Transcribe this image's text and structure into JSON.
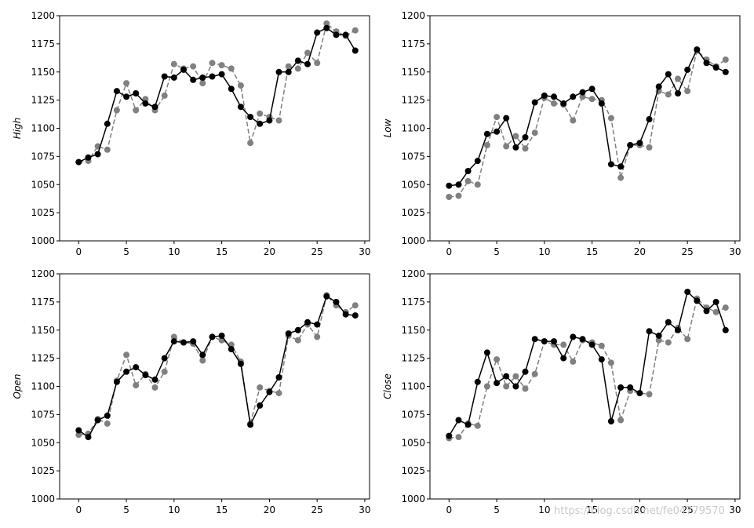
{
  "watermark": "https://blog.csdn.net/fe04779570",
  "chart_data": [
    {
      "type": "line",
      "ylabel": "High",
      "xlim": [
        -2,
        30.5
      ],
      "ylim": [
        1000,
        1200
      ],
      "xticks": [
        0,
        5,
        10,
        15,
        20,
        25,
        30
      ],
      "yticks": [
        1000,
        1025,
        1050,
        1075,
        1100,
        1125,
        1150,
        1175,
        1200
      ],
      "x": [
        0,
        1,
        2,
        3,
        4,
        5,
        6,
        7,
        8,
        9,
        10,
        11,
        12,
        13,
        14,
        15,
        16,
        17,
        18,
        19,
        20,
        21,
        22,
        23,
        24,
        25,
        26,
        27,
        28,
        29
      ],
      "series": [
        {
          "color": "#000000",
          "linestyle": "solid",
          "values": [
            1070,
            1074,
            1077,
            1104,
            1133,
            1128,
            1131,
            1122,
            1119,
            1146,
            1145,
            1152,
            1143,
            1145,
            1146,
            1148,
            1135,
            1119,
            1110,
            1104,
            1107,
            1150,
            1150,
            1160,
            1157,
            1185,
            1189,
            1183,
            1183,
            1169
          ]
        },
        {
          "color": "#808080",
          "linestyle": "dashed",
          "values": [
            1070,
            1071,
            1084,
            1081,
            1116,
            1140,
            1116,
            1126,
            1116,
            1129,
            1157,
            1153,
            1155,
            1140,
            1158,
            1156,
            1153,
            1138,
            1087,
            1113,
            1110,
            1107,
            1155,
            1153,
            1167,
            1158,
            1193,
            1186,
            1182,
            1187
          ]
        }
      ]
    },
    {
      "type": "line",
      "ylabel": "Low",
      "xlim": [
        -2,
        30.5
      ],
      "ylim": [
        1000,
        1200
      ],
      "xticks": [
        0,
        5,
        10,
        15,
        20,
        25,
        30
      ],
      "yticks": [
        1000,
        1025,
        1050,
        1075,
        1100,
        1125,
        1150,
        1175,
        1200
      ],
      "x": [
        0,
        1,
        2,
        3,
        4,
        5,
        6,
        7,
        8,
        9,
        10,
        11,
        12,
        13,
        14,
        15,
        16,
        17,
        18,
        19,
        20,
        21,
        22,
        23,
        24,
        25,
        26,
        27,
        28,
        29
      ],
      "series": [
        {
          "color": "#000000",
          "linestyle": "solid",
          "values": [
            1049,
            1050,
            1062,
            1071,
            1095,
            1097,
            1109,
            1083,
            1092,
            1123,
            1129,
            1128,
            1122,
            1128,
            1132,
            1135,
            1122,
            1068,
            1066,
            1085,
            1087,
            1108,
            1137,
            1148,
            1131,
            1152,
            1170,
            1158,
            1154,
            1150
          ]
        },
        {
          "color": "#808080",
          "linestyle": "dashed",
          "values": [
            1039,
            1040,
            1053,
            1050,
            1085,
            1110,
            1084,
            1093,
            1082,
            1096,
            1127,
            1122,
            1121,
            1107,
            1128,
            1126,
            1125,
            1109,
            1056,
            1085,
            1085,
            1083,
            1133,
            1130,
            1144,
            1133,
            1169,
            1161,
            1155,
            1161
          ]
        }
      ]
    },
    {
      "type": "line",
      "ylabel": "Open",
      "xlim": [
        -2,
        30.5
      ],
      "ylim": [
        1000,
        1200
      ],
      "xticks": [
        0,
        5,
        10,
        15,
        20,
        25,
        30
      ],
      "yticks": [
        1000,
        1025,
        1050,
        1075,
        1100,
        1125,
        1150,
        1175,
        1200
      ],
      "x": [
        0,
        1,
        2,
        3,
        4,
        5,
        6,
        7,
        8,
        9,
        10,
        11,
        12,
        13,
        14,
        15,
        16,
        17,
        18,
        19,
        20,
        21,
        22,
        23,
        24,
        25,
        26,
        27,
        28,
        29
      ],
      "series": [
        {
          "color": "#000000",
          "linestyle": "solid",
          "values": [
            1061,
            1055,
            1070,
            1074,
            1104,
            1113,
            1117,
            1110,
            1106,
            1125,
            1140,
            1139,
            1140,
            1128,
            1144,
            1145,
            1133,
            1120,
            1066,
            1083,
            1095,
            1108,
            1147,
            1150,
            1157,
            1155,
            1180,
            1175,
            1164,
            1163
          ]
        },
        {
          "color": "#808080",
          "linestyle": "dashed",
          "values": [
            1057,
            1058,
            1071,
            1067,
            1105,
            1128,
            1101,
            1111,
            1099,
            1113,
            1144,
            1139,
            1138,
            1123,
            1144,
            1141,
            1137,
            1122,
            1067,
            1099,
            1096,
            1094,
            1145,
            1141,
            1155,
            1144,
            1181,
            1172,
            1166,
            1172
          ]
        }
      ]
    },
    {
      "type": "line",
      "ylabel": "Close",
      "xlim": [
        -2,
        30.5
      ],
      "ylim": [
        1000,
        1200
      ],
      "xticks": [
        0,
        5,
        10,
        15,
        20,
        25,
        30
      ],
      "yticks": [
        1000,
        1025,
        1050,
        1075,
        1100,
        1125,
        1150,
        1175,
        1200
      ],
      "x": [
        0,
        1,
        2,
        3,
        4,
        5,
        6,
        7,
        8,
        9,
        10,
        11,
        12,
        13,
        14,
        15,
        16,
        17,
        18,
        19,
        20,
        21,
        22,
        23,
        24,
        25,
        26,
        27,
        28,
        29
      ],
      "series": [
        {
          "color": "#000000",
          "linestyle": "solid",
          "values": [
            1056,
            1070,
            1066,
            1104,
            1130,
            1103,
            1109,
            1100,
            1113,
            1142,
            1140,
            1140,
            1125,
            1144,
            1142,
            1137,
            1124,
            1069,
            1099,
            1099,
            1094,
            1149,
            1145,
            1157,
            1150,
            1184,
            1176,
            1167,
            1175,
            1150
          ]
        },
        {
          "color": "#808080",
          "linestyle": "dashed",
          "values": [
            1054,
            1055,
            1067,
            1065,
            1100,
            1124,
            1100,
            1109,
            1098,
            1111,
            1140,
            1137,
            1137,
            1122,
            1141,
            1139,
            1136,
            1121,
            1070,
            1096,
            1094,
            1093,
            1141,
            1139,
            1152,
            1142,
            1178,
            1170,
            1166,
            1170
          ]
        }
      ]
    }
  ]
}
